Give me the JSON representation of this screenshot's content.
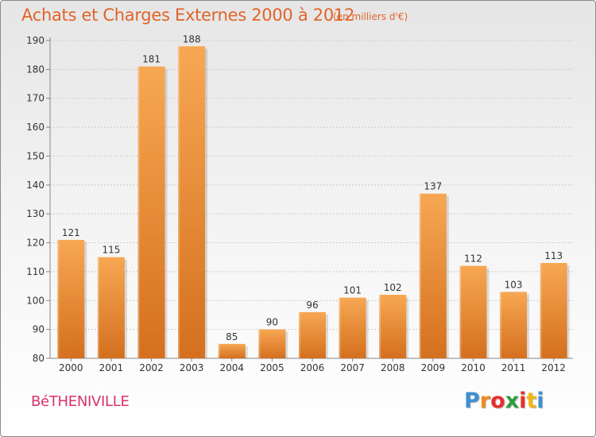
{
  "header": {
    "title": "Achats et Charges Externes 2000 à 2012",
    "subtitle": "(en milliers d'€)"
  },
  "footer": {
    "town": "BéTHENIVILLE",
    "logo_letters": [
      "P",
      "r",
      "o",
      "x",
      "i",
      "t",
      "i"
    ],
    "logo_colors": [
      "#3e8fd3",
      "#f08a1c",
      "#e4322a",
      "#2f9d3e",
      "#e4322a",
      "#f5b614",
      "#3e8fd3"
    ]
  },
  "colors": {
    "bar_top": "#f7a752",
    "bar_bottom": "#d4701f",
    "grid": "#cccccc",
    "axis_text": "#333333"
  },
  "chart_data": {
    "type": "bar",
    "categories": [
      "2000",
      "2001",
      "2002",
      "2003",
      "2004",
      "2005",
      "2006",
      "2007",
      "2008",
      "2009",
      "2010",
      "2011",
      "2012"
    ],
    "values": [
      121,
      115,
      181,
      188,
      85,
      90,
      96,
      101,
      102,
      137,
      112,
      103,
      113
    ],
    "ylim": [
      80,
      190
    ],
    "yticks": [
      80,
      90,
      100,
      110,
      120,
      130,
      140,
      150,
      160,
      170,
      180,
      190
    ],
    "grid": true
  }
}
